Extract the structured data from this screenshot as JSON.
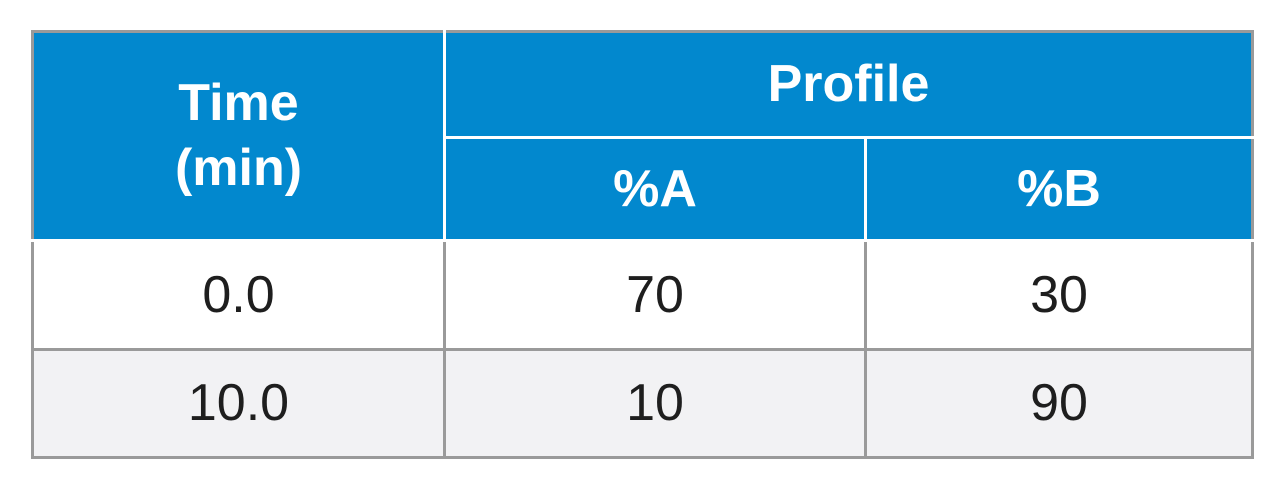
{
  "table": {
    "header": {
      "time_line1": "Time",
      "time_line2": "(min)",
      "profile": "Profile",
      "col_a": "%A",
      "col_b": "%B"
    },
    "rows": [
      {
        "time": "0.0",
        "a": "70",
        "b": "30"
      },
      {
        "time": "10.0",
        "a": "10",
        "b": "90"
      }
    ]
  },
  "colors": {
    "header_bg": "#0288CE",
    "header_text": "#FFFFFF",
    "border": "#9A9A9A",
    "alt_row_bg": "#F2F2F4",
    "body_text": "#1E1E1E"
  }
}
